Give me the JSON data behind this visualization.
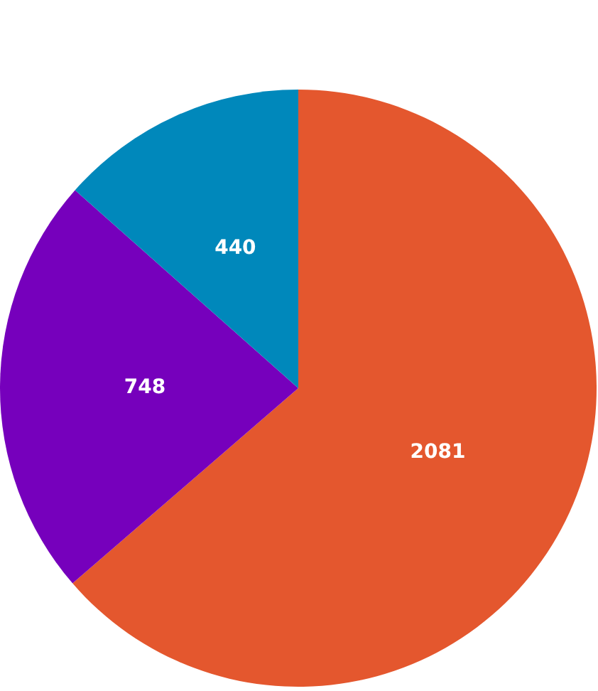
{
  "chart_data": {
    "type": "pie",
    "categories": [
      null,
      null,
      null
    ],
    "values": [
      2081,
      748,
      440
    ],
    "colors": [
      "#e4572e",
      "#7600bc",
      "#0088bb"
    ],
    "data_labels": true
  }
}
